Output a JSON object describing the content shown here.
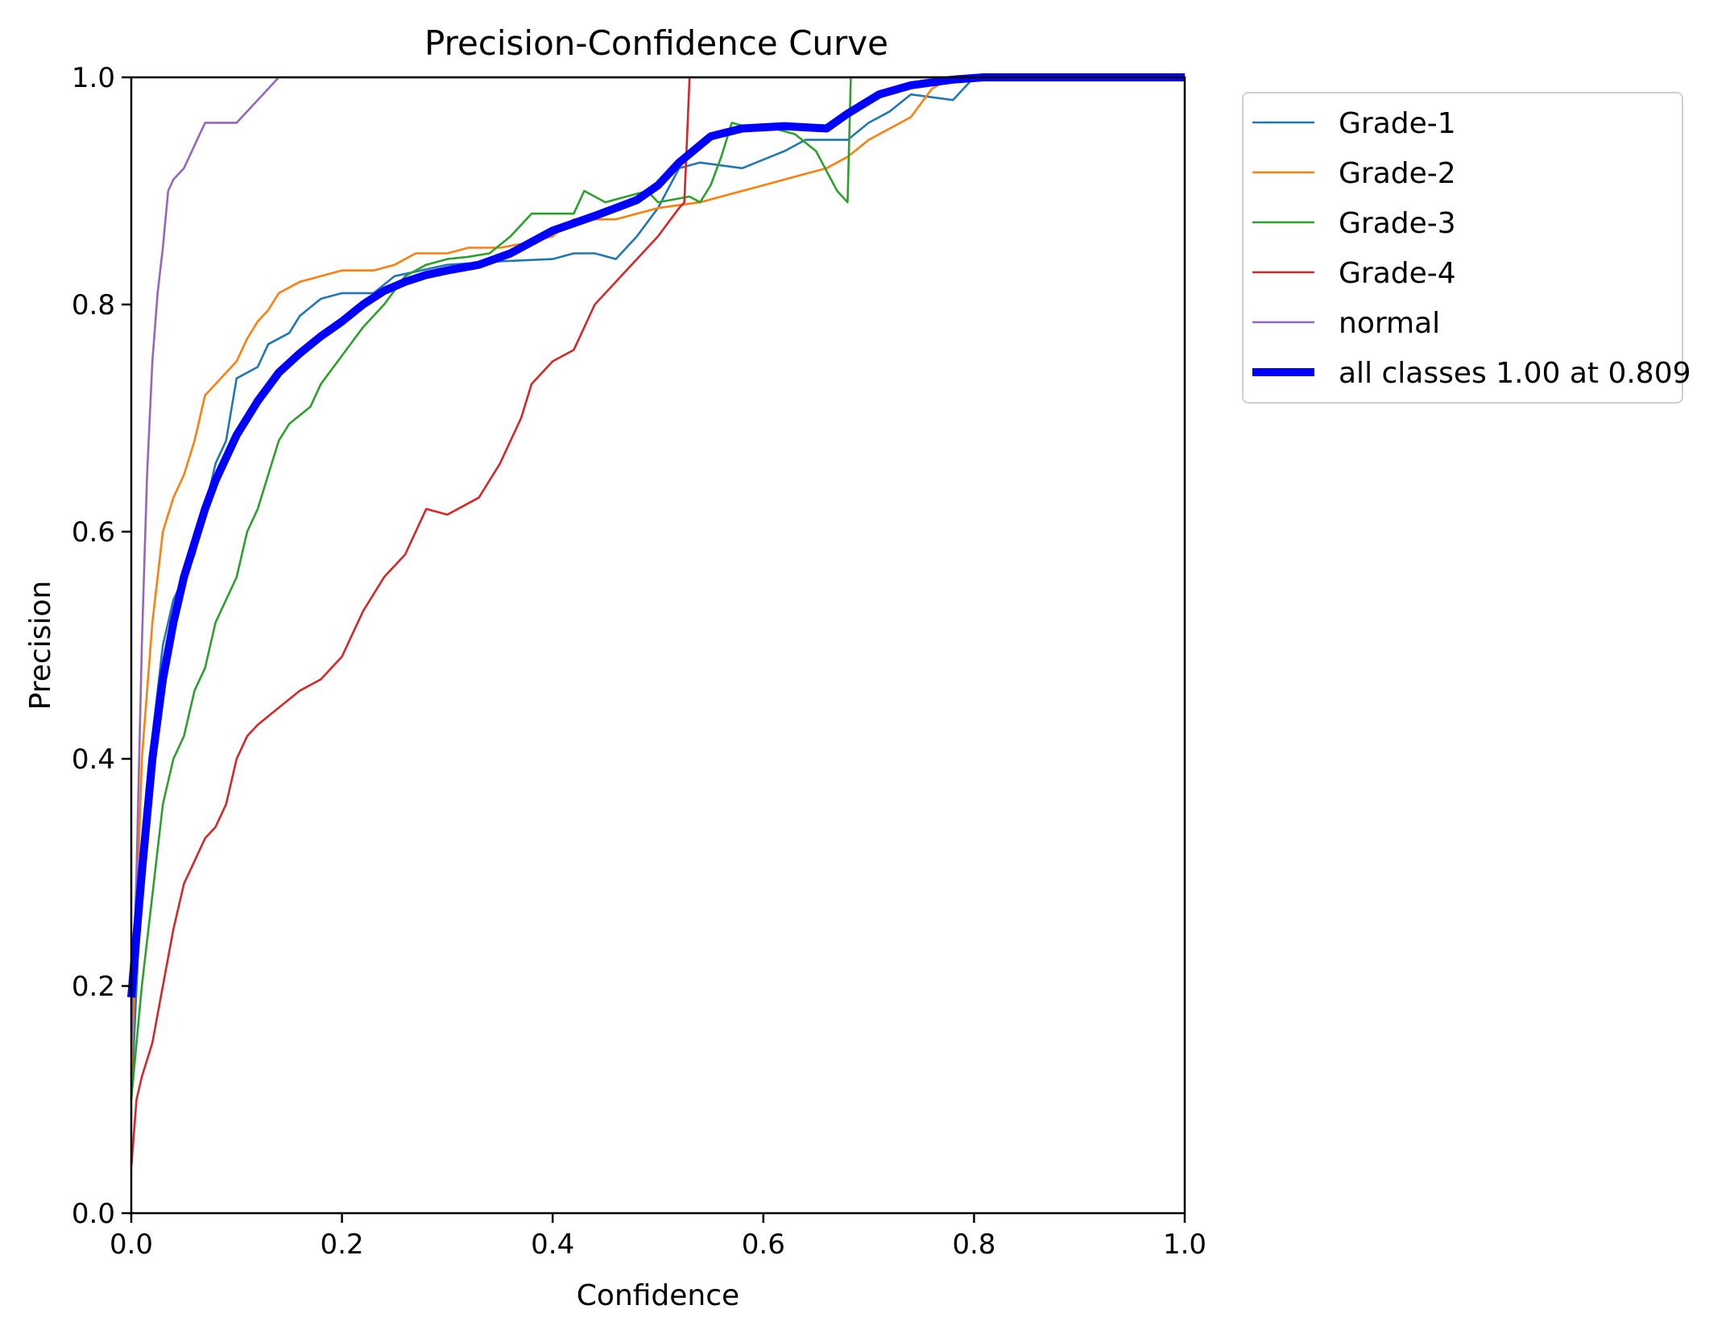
{
  "chart_data": {
    "type": "line",
    "title": "Precision-Confidence Curve",
    "xlabel": "Confidence",
    "ylabel": "Precision",
    "xlim": [
      0,
      1
    ],
    "ylim": [
      0,
      1
    ],
    "xticks": [
      "0.0",
      "0.2",
      "0.4",
      "0.6",
      "0.8",
      "1.0"
    ],
    "yticks": [
      "0.0",
      "0.2",
      "0.4",
      "0.6",
      "0.8",
      "1.0"
    ],
    "grid": false,
    "legend_position": "outside-top-right",
    "series": [
      {
        "name": "Grade-1",
        "color": "#1f77b4",
        "width": "thin",
        "points": [
          [
            0.0,
            0.1
          ],
          [
            0.01,
            0.3
          ],
          [
            0.02,
            0.42
          ],
          [
            0.03,
            0.5
          ],
          [
            0.04,
            0.54
          ],
          [
            0.05,
            0.56
          ],
          [
            0.06,
            0.58
          ],
          [
            0.07,
            0.62
          ],
          [
            0.08,
            0.66
          ],
          [
            0.09,
            0.68
          ],
          [
            0.1,
            0.735
          ],
          [
            0.12,
            0.745
          ],
          [
            0.13,
            0.765
          ],
          [
            0.15,
            0.775
          ],
          [
            0.16,
            0.79
          ],
          [
            0.18,
            0.805
          ],
          [
            0.2,
            0.81
          ],
          [
            0.23,
            0.81
          ],
          [
            0.25,
            0.825
          ],
          [
            0.3,
            0.835
          ],
          [
            0.35,
            0.838
          ],
          [
            0.4,
            0.84
          ],
          [
            0.42,
            0.845
          ],
          [
            0.44,
            0.845
          ],
          [
            0.46,
            0.84
          ],
          [
            0.48,
            0.86
          ],
          [
            0.5,
            0.885
          ],
          [
            0.52,
            0.92
          ],
          [
            0.54,
            0.925
          ],
          [
            0.58,
            0.92
          ],
          [
            0.62,
            0.935
          ],
          [
            0.64,
            0.945
          ],
          [
            0.68,
            0.945
          ],
          [
            0.7,
            0.96
          ],
          [
            0.72,
            0.97
          ],
          [
            0.74,
            0.985
          ],
          [
            0.78,
            0.98
          ],
          [
            0.8,
            1.0
          ],
          [
            1.0,
            1.0
          ]
        ]
      },
      {
        "name": "Grade-2",
        "color": "#ff7f0e",
        "width": "thin",
        "points": [
          [
            0.0,
            0.12
          ],
          [
            0.01,
            0.4
          ],
          [
            0.02,
            0.52
          ],
          [
            0.03,
            0.6
          ],
          [
            0.04,
            0.63
          ],
          [
            0.05,
            0.65
          ],
          [
            0.06,
            0.68
          ],
          [
            0.07,
            0.72
          ],
          [
            0.08,
            0.73
          ],
          [
            0.1,
            0.75
          ],
          [
            0.11,
            0.77
          ],
          [
            0.12,
            0.785
          ],
          [
            0.13,
            0.795
          ],
          [
            0.14,
            0.81
          ],
          [
            0.16,
            0.82
          ],
          [
            0.18,
            0.825
          ],
          [
            0.2,
            0.83
          ],
          [
            0.23,
            0.83
          ],
          [
            0.25,
            0.835
          ],
          [
            0.27,
            0.845
          ],
          [
            0.3,
            0.845
          ],
          [
            0.32,
            0.85
          ],
          [
            0.35,
            0.85
          ],
          [
            0.38,
            0.855
          ],
          [
            0.4,
            0.86
          ],
          [
            0.42,
            0.875
          ],
          [
            0.46,
            0.875
          ],
          [
            0.48,
            0.88
          ],
          [
            0.5,
            0.885
          ],
          [
            0.54,
            0.89
          ],
          [
            0.56,
            0.895
          ],
          [
            0.58,
            0.9
          ],
          [
            0.6,
            0.905
          ],
          [
            0.62,
            0.91
          ],
          [
            0.64,
            0.915
          ],
          [
            0.66,
            0.92
          ],
          [
            0.68,
            0.93
          ],
          [
            0.7,
            0.945
          ],
          [
            0.72,
            0.955
          ],
          [
            0.74,
            0.965
          ],
          [
            0.76,
            0.99
          ],
          [
            0.78,
            1.0
          ],
          [
            1.0,
            1.0
          ]
        ]
      },
      {
        "name": "Grade-3",
        "color": "#2ca02c",
        "width": "thin",
        "points": [
          [
            0.0,
            0.1
          ],
          [
            0.01,
            0.2
          ],
          [
            0.02,
            0.28
          ],
          [
            0.03,
            0.36
          ],
          [
            0.04,
            0.4
          ],
          [
            0.05,
            0.42
          ],
          [
            0.06,
            0.46
          ],
          [
            0.07,
            0.48
          ],
          [
            0.08,
            0.52
          ],
          [
            0.09,
            0.54
          ],
          [
            0.1,
            0.56
          ],
          [
            0.11,
            0.6
          ],
          [
            0.12,
            0.62
          ],
          [
            0.13,
            0.65
          ],
          [
            0.14,
            0.68
          ],
          [
            0.15,
            0.695
          ],
          [
            0.17,
            0.71
          ],
          [
            0.18,
            0.73
          ],
          [
            0.2,
            0.755
          ],
          [
            0.22,
            0.78
          ],
          [
            0.24,
            0.8
          ],
          [
            0.26,
            0.825
          ],
          [
            0.28,
            0.835
          ],
          [
            0.3,
            0.84
          ],
          [
            0.32,
            0.842
          ],
          [
            0.34,
            0.845
          ],
          [
            0.36,
            0.86
          ],
          [
            0.38,
            0.88
          ],
          [
            0.42,
            0.88
          ],
          [
            0.43,
            0.9
          ],
          [
            0.45,
            0.89
          ],
          [
            0.47,
            0.895
          ],
          [
            0.49,
            0.9
          ],
          [
            0.5,
            0.89
          ],
          [
            0.53,
            0.895
          ],
          [
            0.54,
            0.89
          ],
          [
            0.55,
            0.905
          ],
          [
            0.56,
            0.93
          ],
          [
            0.57,
            0.96
          ],
          [
            0.59,
            0.955
          ],
          [
            0.61,
            0.955
          ],
          [
            0.63,
            0.95
          ],
          [
            0.65,
            0.935
          ],
          [
            0.67,
            0.9
          ],
          [
            0.68,
            0.89
          ],
          [
            0.683,
            1.0
          ],
          [
            1.0,
            1.0
          ]
        ]
      },
      {
        "name": "Grade-4",
        "color": "#d62728",
        "width": "thin",
        "points": [
          [
            0.0,
            0.04
          ],
          [
            0.005,
            0.1
          ],
          [
            0.01,
            0.12
          ],
          [
            0.02,
            0.15
          ],
          [
            0.03,
            0.2
          ],
          [
            0.04,
            0.25
          ],
          [
            0.05,
            0.29
          ],
          [
            0.06,
            0.31
          ],
          [
            0.07,
            0.33
          ],
          [
            0.08,
            0.34
          ],
          [
            0.09,
            0.36
          ],
          [
            0.1,
            0.4
          ],
          [
            0.11,
            0.42
          ],
          [
            0.12,
            0.43
          ],
          [
            0.14,
            0.445
          ],
          [
            0.16,
            0.46
          ],
          [
            0.18,
            0.47
          ],
          [
            0.2,
            0.49
          ],
          [
            0.22,
            0.53
          ],
          [
            0.24,
            0.56
          ],
          [
            0.26,
            0.58
          ],
          [
            0.28,
            0.62
          ],
          [
            0.3,
            0.615
          ],
          [
            0.33,
            0.63
          ],
          [
            0.35,
            0.66
          ],
          [
            0.37,
            0.7
          ],
          [
            0.38,
            0.73
          ],
          [
            0.4,
            0.75
          ],
          [
            0.42,
            0.76
          ],
          [
            0.44,
            0.8
          ],
          [
            0.46,
            0.82
          ],
          [
            0.48,
            0.84
          ],
          [
            0.5,
            0.86
          ],
          [
            0.52,
            0.885
          ],
          [
            0.525,
            0.89
          ],
          [
            0.53,
            1.0
          ]
        ]
      },
      {
        "name": "normal",
        "color": "#9467bd",
        "width": "thin",
        "points": [
          [
            0.0,
            0.15
          ],
          [
            0.005,
            0.3
          ],
          [
            0.01,
            0.5
          ],
          [
            0.015,
            0.65
          ],
          [
            0.02,
            0.75
          ],
          [
            0.025,
            0.81
          ],
          [
            0.03,
            0.85
          ],
          [
            0.035,
            0.9
          ],
          [
            0.04,
            0.91
          ],
          [
            0.05,
            0.92
          ],
          [
            0.06,
            0.94
          ],
          [
            0.07,
            0.96
          ],
          [
            0.1,
            0.96
          ],
          [
            0.12,
            0.98
          ],
          [
            0.14,
            1.0
          ],
          [
            1.0,
            1.0
          ]
        ]
      },
      {
        "name": "all classes 1.00 at 0.809",
        "color": "#0000ff",
        "width": "thick",
        "points": [
          [
            0.0,
            0.19
          ],
          [
            0.01,
            0.3
          ],
          [
            0.02,
            0.4
          ],
          [
            0.03,
            0.47
          ],
          [
            0.04,
            0.52
          ],
          [
            0.05,
            0.56
          ],
          [
            0.06,
            0.59
          ],
          [
            0.07,
            0.62
          ],
          [
            0.08,
            0.645
          ],
          [
            0.09,
            0.665
          ],
          [
            0.1,
            0.685
          ],
          [
            0.12,
            0.715
          ],
          [
            0.14,
            0.74
          ],
          [
            0.16,
            0.757
          ],
          [
            0.18,
            0.772
          ],
          [
            0.2,
            0.785
          ],
          [
            0.22,
            0.8
          ],
          [
            0.24,
            0.812
          ],
          [
            0.26,
            0.82
          ],
          [
            0.28,
            0.826
          ],
          [
            0.3,
            0.83
          ],
          [
            0.33,
            0.835
          ],
          [
            0.36,
            0.845
          ],
          [
            0.4,
            0.865
          ],
          [
            0.44,
            0.878
          ],
          [
            0.46,
            0.885
          ],
          [
            0.48,
            0.892
          ],
          [
            0.5,
            0.905
          ],
          [
            0.52,
            0.925
          ],
          [
            0.55,
            0.948
          ],
          [
            0.58,
            0.955
          ],
          [
            0.62,
            0.957
          ],
          [
            0.66,
            0.955
          ],
          [
            0.68,
            0.968
          ],
          [
            0.71,
            0.985
          ],
          [
            0.74,
            0.993
          ],
          [
            0.78,
            0.998
          ],
          [
            0.809,
            1.0
          ],
          [
            1.0,
            1.0
          ]
        ]
      }
    ]
  }
}
